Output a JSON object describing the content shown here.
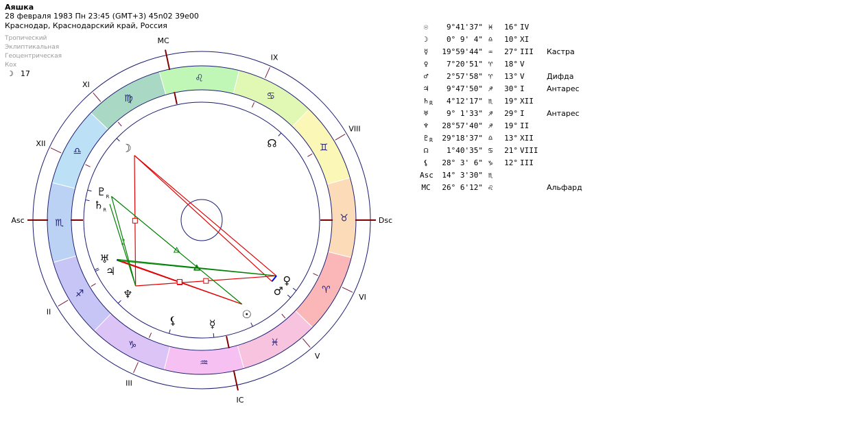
{
  "header": {
    "name": "Аяшка",
    "line1": "28 февраля 1983  Пн  23:45 (GMT+3) 45n02  39e00",
    "line2": "Краснодар, Краснодарский край, Россия"
  },
  "settings": [
    "Тропический",
    "Эклиптикальная",
    "Геоцентрическая",
    "Кох"
  ],
  "moon_day": {
    "glyph": "☽",
    "value": "17"
  },
  "chart_data": {
    "type": "astrological-wheel",
    "ascendant_longitude": 224.058,
    "zodiac": [
      {
        "glyph": "♈",
        "color": "#fbb7b8"
      },
      {
        "glyph": "♉",
        "color": "#fcdcb8"
      },
      {
        "glyph": "♊",
        "color": "#fbf7b6"
      },
      {
        "glyph": "♋",
        "color": "#e1f7b4"
      },
      {
        "glyph": "♌",
        "color": "#c0f7b6"
      },
      {
        "glyph": "♍",
        "color": "#a9d8c4"
      },
      {
        "glyph": "♎",
        "color": "#bce0f5"
      },
      {
        "glyph": "♏",
        "color": "#bcd2f5"
      },
      {
        "glyph": "♐",
        "color": "#c7c5f5"
      },
      {
        "glyph": "♑",
        "color": "#dcc4f6"
      },
      {
        "glyph": "♒",
        "color": "#f6c0f3"
      },
      {
        "glyph": "♓",
        "color": "#f7c3de"
      }
    ],
    "angles": [
      {
        "label": "Asc",
        "longitude": 224.058
      },
      {
        "label": "MC",
        "longitude": 146.103
      },
      {
        "label": "Dsc",
        "longitude": 44.058
      },
      {
        "label": "IC",
        "longitude": 326.103
      }
    ],
    "house_cusps": [
      {
        "label": "XI",
        "longitude": 174.5
      },
      {
        "label": "XII",
        "longitude": 198.5
      },
      {
        "label": "II",
        "longitude": 255.0
      },
      {
        "label": "III",
        "longitude": 290.0
      },
      {
        "label": "V",
        "longitude": 354.5
      },
      {
        "label": "VI",
        "longitude": 18.5
      },
      {
        "label": "VIII",
        "longitude": 75.0
      },
      {
        "label": "IX",
        "longitude": 110.0
      }
    ],
    "planets": [
      {
        "glyph": "☉",
        "name": "Солнце",
        "longitude": 339.69,
        "position": "9°41'37\"",
        "sign": "♓",
        "deg": "16°",
        "house": "IV",
        "star": "",
        "r": false
      },
      {
        "glyph": "☽",
        "name": "Луна",
        "longitude": 180.152,
        "position": "0° 9' 4\"",
        "sign": "♎",
        "deg": "10°",
        "house": "XI",
        "star": "",
        "r": false
      },
      {
        "glyph": "☿",
        "name": "Меркурий",
        "longitude": 319.996,
        "position": "19°59'44\"",
        "sign": "♒",
        "deg": "27°",
        "house": "III",
        "star": "Кастра",
        "r": false
      },
      {
        "glyph": "♀",
        "name": "Венера",
        "longitude": 7.348,
        "position": "7°20'51\"",
        "sign": "♈",
        "deg": "18°",
        "house": "V",
        "star": "",
        "r": false
      },
      {
        "glyph": "♂",
        "name": "Марс",
        "longitude": 2.966,
        "position": "2°57'58\"",
        "sign": "♈",
        "deg": "13°",
        "house": "V",
        "star": "Дифда",
        "r": false
      },
      {
        "glyph": "♃",
        "name": "Юпитер",
        "longitude": 249.797,
        "position": "9°47'50\"",
        "sign": "♐",
        "deg": "30°",
        "house": "I",
        "star": "Антарес",
        "r": false
      },
      {
        "glyph": "♄",
        "name": "Сатурн",
        "longitude": 214.205,
        "position": "4°12'17\"",
        "sign": "♏",
        "deg": "19°",
        "house": "XII",
        "star": "",
        "r": true
      },
      {
        "glyph": "♅",
        "name": "Уран",
        "longitude": 249.026,
        "position": "9° 1'33\"",
        "sign": "♐",
        "deg": "29°",
        "house": "I",
        "star": "Антарес",
        "r": false
      },
      {
        "glyph": "♆",
        "name": "Нептун",
        "longitude": 268.961,
        "position": "28°57'40\"",
        "sign": "♐",
        "deg": "19°",
        "house": "II",
        "star": "",
        "r": false
      },
      {
        "glyph": "♇",
        "name": "Плутон",
        "longitude": 209.31,
        "position": "29°18'37\"",
        "sign": "♎",
        "deg": "13°",
        "house": "XII",
        "star": "",
        "r": true
      },
      {
        "glyph": "☊",
        "name": "Узел",
        "longitude": 91.676,
        "position": "1°40'35\"",
        "sign": "♋",
        "deg": "21°",
        "house": "VIII",
        "star": "",
        "r": false
      },
      {
        "glyph": "⚸",
        "name": "Лилит",
        "longitude": 298.052,
        "position": "28° 3' 6\"",
        "sign": "♑",
        "deg": "12°",
        "house": "III",
        "star": "",
        "r": false
      },
      {
        "glyph": "Asc",
        "name": "Асцендент",
        "longitude": 224.058,
        "position": "14° 3'30\"",
        "sign": "♏",
        "deg": "",
        "house": "",
        "star": "",
        "r": false
      },
      {
        "glyph": "MC",
        "name": "Середина неба",
        "longitude": 146.103,
        "position": "26° 6'12\"",
        "sign": "♌",
        "deg": "",
        "house": "",
        "star": "Альфард",
        "r": false
      }
    ],
    "aspects": [
      {
        "from": "Луна",
        "to": "Нептун",
        "type": "square",
        "color": "#e00000"
      },
      {
        "from": "Луна",
        "to": "Венера",
        "type": "opposition",
        "color": "#e00000"
      },
      {
        "from": "Луна",
        "to": "Марс",
        "type": "opposition",
        "color": "#e00000"
      },
      {
        "from": "Нептун",
        "to": "Венера",
        "type": "square",
        "color": "#e00000"
      },
      {
        "from": "Юпитер",
        "to": "Солнце",
        "type": "square",
        "color": "#e00000"
      },
      {
        "from": "Уран",
        "to": "Солнце",
        "type": "square",
        "color": "#e00000"
      },
      {
        "from": "Плутон",
        "to": "Солнце",
        "type": "trine",
        "color": "#008000"
      },
      {
        "from": "Уран",
        "to": "Венера",
        "type": "trine",
        "color": "#008000"
      },
      {
        "from": "Юпитер",
        "to": "Венера",
        "type": "trine",
        "color": "#008000"
      },
      {
        "from": "Плутон",
        "to": "Нептун",
        "type": "sextile",
        "color": "#008000"
      },
      {
        "from": "Сатурн",
        "to": "Нептун",
        "type": "sextile",
        "color": "#008000"
      },
      {
        "from": "Венера",
        "to": "Марс",
        "type": "conjunction",
        "color": "#0000e0"
      },
      {
        "from": "Юпитер",
        "to": "Уран",
        "type": "conjunction",
        "color": "#0000e0"
      }
    ]
  }
}
